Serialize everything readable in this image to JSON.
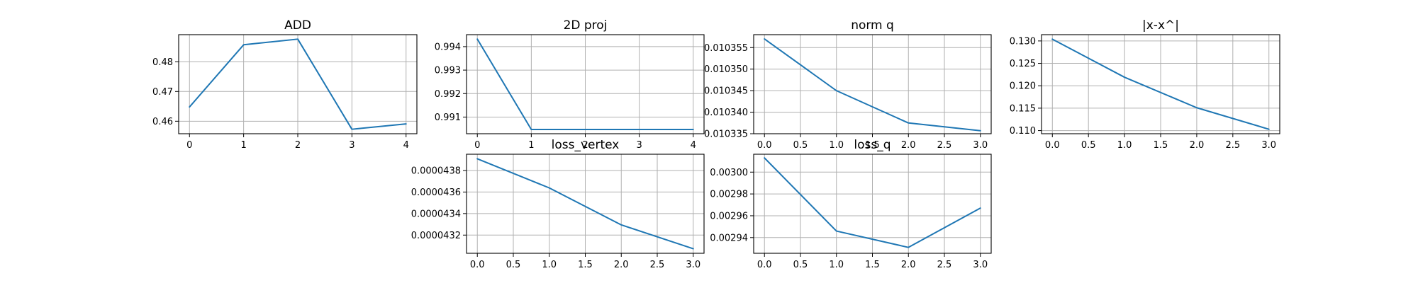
{
  "colors": {
    "series": "#1f77b4",
    "grid": "#b0b0b0"
  },
  "chart_data": [
    {
      "type": "line",
      "title": "ADD",
      "x": [
        0,
        1,
        2,
        3,
        4
      ],
      "series": [
        {
          "values": [
            0.4648,
            0.4857,
            0.4876,
            0.4573,
            0.4591
          ]
        }
      ],
      "xlim": [
        -0.2,
        4.2
      ],
      "ylim": [
        0.4558,
        0.4891
      ],
      "xticks": [
        0,
        1,
        2,
        3,
        4
      ],
      "xtick_labels": [
        "0",
        "1",
        "2",
        "3",
        "4"
      ],
      "yticks": [
        0.46,
        0.47,
        0.48
      ],
      "ytick_labels": [
        "0.46",
        "0.47",
        "0.48"
      ],
      "grid": true
    },
    {
      "type": "line",
      "title": "2D proj",
      "x": [
        0,
        1,
        2,
        3,
        4
      ],
      "series": [
        {
          "values": [
            0.99432,
            0.99047,
            0.99047,
            0.99047,
            0.99047
          ]
        }
      ],
      "xlim": [
        -0.2,
        4.2
      ],
      "ylim": [
        0.99029,
        0.99451
      ],
      "xticks": [
        0,
        1,
        2,
        3,
        4
      ],
      "xtick_labels": [
        "0",
        "1",
        "2",
        "3",
        "4"
      ],
      "yticks": [
        0.991,
        0.992,
        0.993,
        0.994
      ],
      "ytick_labels": [
        "0.991",
        "0.992",
        "0.993",
        "0.994"
      ],
      "grid": true
    },
    {
      "type": "line",
      "title": "norm q",
      "x": [
        0,
        1,
        2,
        3
      ],
      "series": [
        {
          "values": [
            0.010357,
            0.010345,
            0.0103375,
            0.0103357
          ]
        }
      ],
      "xlim": [
        -0.15,
        3.15
      ],
      "ylim": [
        0.010335,
        0.010358
      ],
      "xticks": [
        0,
        0.5,
        1,
        1.5,
        2,
        2.5,
        3
      ],
      "xtick_labels": [
        "0.0",
        "0.5",
        "1.0",
        "1.5",
        "2.0",
        "2.5",
        "3.0"
      ],
      "yticks": [
        0.010335,
        0.01034,
        0.010345,
        0.01035,
        0.010355
      ],
      "ytick_labels": [
        "0.010335",
        "0.010340",
        "0.010345",
        "0.010350",
        "0.010355"
      ],
      "grid": true
    },
    {
      "type": "line",
      "title": "|x-x^|",
      "x": [
        0,
        1,
        2,
        3
      ],
      "series": [
        {
          "values": [
            0.1304,
            0.1219,
            0.1151,
            0.1103
          ]
        }
      ],
      "xlim": [
        -0.15,
        3.15
      ],
      "ylim": [
        0.1093,
        0.1314
      ],
      "xticks": [
        0,
        0.5,
        1,
        1.5,
        2,
        2.5,
        3
      ],
      "xtick_labels": [
        "0.0",
        "0.5",
        "1.0",
        "1.5",
        "2.0",
        "2.5",
        "3.0"
      ],
      "yticks": [
        0.11,
        0.115,
        0.12,
        0.125,
        0.13
      ],
      "ytick_labels": [
        "0.110",
        "0.115",
        "0.120",
        "0.125",
        "0.130"
      ],
      "grid": true
    },
    {
      "type": "line",
      "title": "loss_vertex",
      "x": [
        0,
        1,
        2,
        3
      ],
      "series": [
        {
          "values": [
            4.3909e-05,
            4.3638e-05,
            4.3295e-05,
            4.3073e-05
          ]
        }
      ],
      "xlim": [
        -0.15,
        3.15
      ],
      "ylim": [
        4.3031e-05,
        4.3951e-05
      ],
      "xticks": [
        0,
        0.5,
        1,
        1.5,
        2,
        2.5,
        3
      ],
      "xtick_labels": [
        "0.0",
        "0.5",
        "1.0",
        "1.5",
        "2.0",
        "2.5",
        "3.0"
      ],
      "yticks": [
        4.32e-05,
        4.34e-05,
        4.36e-05,
        4.38e-05
      ],
      "ytick_labels": [
        "0.0000432",
        "0.0000434",
        "0.0000436",
        "0.0000438"
      ],
      "grid": true
    },
    {
      "type": "line",
      "title": "loss_q",
      "x": [
        0,
        1,
        2,
        3
      ],
      "series": [
        {
          "values": [
            0.003013,
            0.002946,
            0.002931,
            0.002967
          ]
        }
      ],
      "xlim": [
        -0.15,
        3.15
      ],
      "ylim": [
        0.0029256,
        0.0030164
      ],
      "xticks": [
        0,
        0.5,
        1,
        1.5,
        2,
        2.5,
        3
      ],
      "xtick_labels": [
        "0.0",
        "0.5",
        "1.0",
        "1.5",
        "2.0",
        "2.5",
        "3.0"
      ],
      "yticks": [
        0.00294,
        0.00296,
        0.00298,
        0.003
      ],
      "ytick_labels": [
        "0.00294",
        "0.00296",
        "0.00298",
        "0.00300"
      ],
      "grid": true
    }
  ]
}
